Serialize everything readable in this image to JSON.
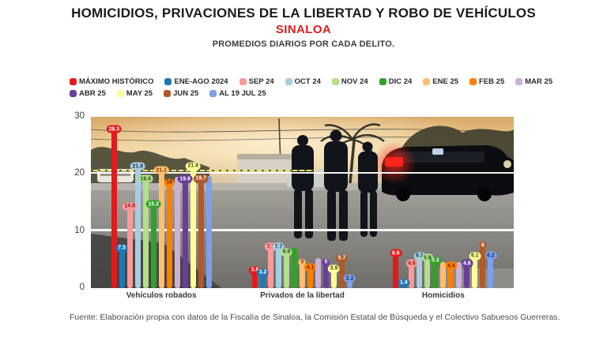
{
  "title": "HOMICIDIOS, PRIVACIONES DE LA LIBERTAD Y ROBO DE VEHÍCULOS",
  "subtitle": "SINALOA",
  "tagline": "PROMEDIOS DIARIOS POR CADA DELITO.",
  "footer": {
    "text": "Fuente: Elaboración propia con datos de la Fiscalía de Sinaloa, la Comisión Estatal de Búsqueda y el Colectivo Sabuesos Guerreras."
  },
  "colors": {
    "title": "#1c1c1c",
    "subtitle_accent": "#d8201c",
    "gridline": "#ffffff",
    "reference_line": "#ece27a"
  },
  "chart_data": {
    "type": "bar",
    "title": "PROMEDIOS DIARIOS POR CADA DELITO.",
    "xlabel": "",
    "ylabel": "",
    "ylim": [
      0,
      30
    ],
    "yticks": [
      0,
      10,
      20,
      30
    ],
    "grid": "white horizontal lines at 10 and 20 over background photo",
    "legend_position": "top",
    "reference_line": {
      "value": 20.5,
      "color": "#ece27a",
      "note": "yellow dashed line over left portion of plot"
    },
    "categories": [
      "Vehículos robados",
      "Privados de la libertad",
      "Homicidios"
    ],
    "series": [
      {
        "name": "MÁXIMO HISTÓRICO",
        "color": "#e31a1c",
        "text": "#ffffff",
        "values": [
          28.3,
          3.6,
          6.6
        ],
        "labels": [
          "28.3",
          "3.6",
          "6.6"
        ]
      },
      {
        "name": "ENE-AGO 2024",
        "color": "#1f78b4",
        "text": "#ffffff",
        "values": [
          7.5,
          3.2,
          1.4
        ],
        "labels": [
          "7.5",
          "3.2",
          "1.4"
        ]
      },
      {
        "name": "SEP 24",
        "color": "#fb9a99",
        "text": "#8b2020",
        "values": [
          14.8,
          7.7,
          4.8
        ],
        "labels": [
          "14.8",
          "7.7",
          "4.8"
        ]
      },
      {
        "name": "OCT 24",
        "color": "#a6cee3",
        "text": "#20344a",
        "values": [
          21.8,
          7.7,
          6.1
        ],
        "labels": [
          "21.8",
          "7.7",
          "6.1"
        ]
      },
      {
        "name": "NOV 24",
        "color": "#b2df8a",
        "text": "#234d20",
        "values": [
          19.6,
          6.8,
          5.8
        ],
        "labels": [
          "19.6",
          "6.8",
          "5.8"
        ]
      },
      {
        "name": "DIC 24",
        "color": "#33a02c",
        "text": "#ffffff",
        "values": [
          15.2,
          7.0,
          5.3
        ],
        "labels": [
          "15.2",
          "",
          "5.3"
        ]
      },
      {
        "name": "ENE 25",
        "color": "#fdbf6f",
        "text": "#7a3c00",
        "values": [
          21.1,
          5.0,
          4.6
        ],
        "labels": [
          "21.1",
          "5",
          ""
        ]
      },
      {
        "name": "FEB 25",
        "color": "#ff7f00",
        "text": "#7a2000",
        "values": [
          19.0,
          4.1,
          4.4
        ],
        "labels": [
          "19",
          "4.1",
          "4.4"
        ]
      },
      {
        "name": "MAR 25",
        "color": "#cab2d6",
        "text": "#3d2a4a",
        "values": [
          19.5,
          5.3,
          4.6
        ],
        "labels": [
          "",
          "",
          ""
        ]
      },
      {
        "name": "ABR 25",
        "color": "#6a3d9a",
        "text": "#ffffff",
        "values": [
          19.6,
          5.0,
          4.8
        ],
        "labels": [
          "19.6",
          "5",
          "4.8"
        ]
      },
      {
        "name": "MAY 25",
        "color": "#ffff99",
        "text": "#4a4a10",
        "values": [
          21.9,
          3.9,
          6.1
        ],
        "labels": [
          "21.9",
          "3.9",
          "6.1"
        ]
      },
      {
        "name": "JUN 25",
        "color": "#b15928",
        "text": "#ffffff",
        "values": [
          19.7,
          5.7,
          8.0
        ],
        "labels": [
          "19.7",
          "5.7",
          "8"
        ]
      },
      {
        "name": "AL 19 JUL 25",
        "color": "#7da1e8",
        "text": "#1a2e6e",
        "values": [
          19.7,
          2.2,
          6.2
        ],
        "labels": [
          "",
          "2.2",
          "6.2"
        ]
      }
    ]
  }
}
